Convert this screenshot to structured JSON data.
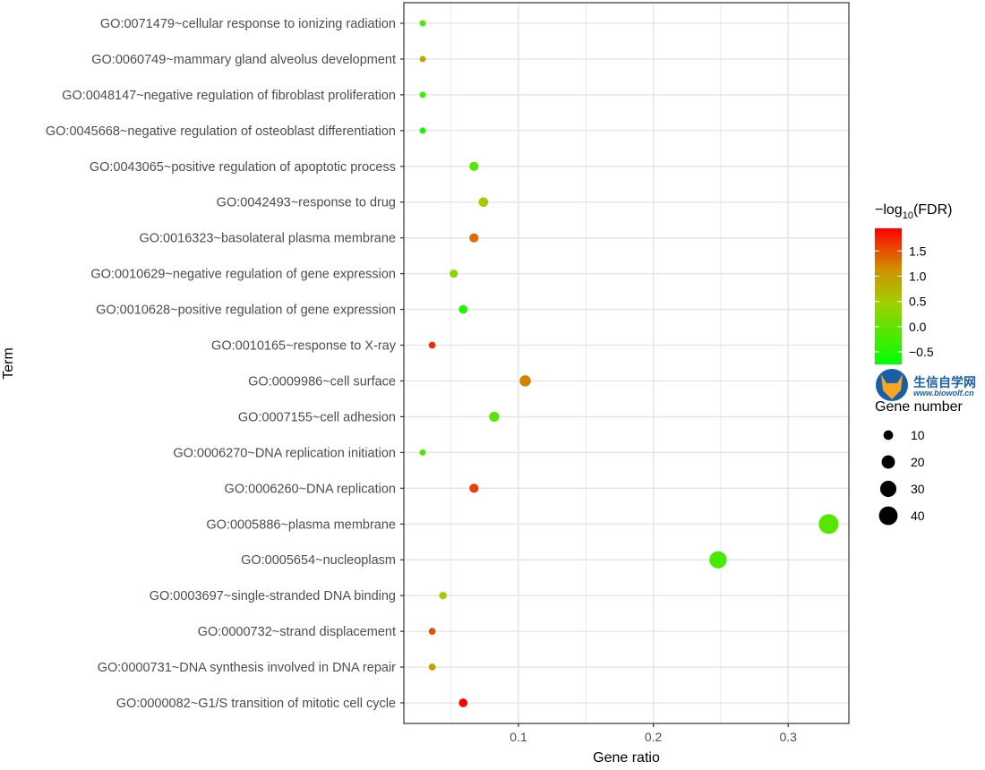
{
  "chart_data": {
    "type": "scatter",
    "xlabel": "Gene ratio",
    "ylabel": "Term",
    "xlim": [
      0.015,
      0.345
    ],
    "x_ticks": [
      0.1,
      0.2,
      0.3
    ],
    "grid": true,
    "terms": [
      {
        "term": "GO:0000082~G1/S transition of mitotic cell cycle",
        "gene_ratio": 0.059,
        "gene_number": 8,
        "neg_log10_fdr": 1.95
      },
      {
        "term": "GO:0000731~DNA synthesis involved in DNA repair",
        "gene_ratio": 0.036,
        "gene_number": 5,
        "neg_log10_fdr": 1.0
      },
      {
        "term": "GO:0000732~strand displacement",
        "gene_ratio": 0.036,
        "gene_number": 5,
        "neg_log10_fdr": 1.5
      },
      {
        "term": "GO:0003697~single-stranded DNA binding",
        "gene_ratio": 0.044,
        "gene_number": 6,
        "neg_log10_fdr": 0.5
      },
      {
        "term": "GO:0005654~nucleoplasm",
        "gene_ratio": 0.248,
        "gene_number": 34,
        "neg_log10_fdr": -0.2
      },
      {
        "term": "GO:0005886~plasma membrane",
        "gene_ratio": 0.33,
        "gene_number": 45,
        "neg_log10_fdr": -0.1
      },
      {
        "term": "GO:0006260~DNA replication",
        "gene_ratio": 0.067,
        "gene_number": 9,
        "neg_log10_fdr": 1.6
      },
      {
        "term": "GO:0006270~DNA replication initiation",
        "gene_ratio": 0.029,
        "gene_number": 4,
        "neg_log10_fdr": -0.2
      },
      {
        "term": "GO:0007155~cell adhesion",
        "gene_ratio": 0.082,
        "gene_number": 11,
        "neg_log10_fdr": -0.1
      },
      {
        "term": "GO:0009986~cell surface",
        "gene_ratio": 0.105,
        "gene_number": 14,
        "neg_log10_fdr": 1.2
      },
      {
        "term": "GO:0010165~response to X-ray",
        "gene_ratio": 0.036,
        "gene_number": 5,
        "neg_log10_fdr": 1.7
      },
      {
        "term": "GO:0010628~positive regulation of gene expression",
        "gene_ratio": 0.059,
        "gene_number": 8,
        "neg_log10_fdr": -0.5
      },
      {
        "term": "GO:0010629~negative regulation of gene expression",
        "gene_ratio": 0.052,
        "gene_number": 7,
        "neg_log10_fdr": 0.3
      },
      {
        "term": "GO:0016323~basolateral plasma membrane",
        "gene_ratio": 0.067,
        "gene_number": 9,
        "neg_log10_fdr": 1.35
      },
      {
        "term": "GO:0042493~response to drug",
        "gene_ratio": 0.074,
        "gene_number": 10,
        "neg_log10_fdr": 0.5
      },
      {
        "term": "GO:0043065~positive regulation of apoptotic process",
        "gene_ratio": 0.067,
        "gene_number": 9,
        "neg_log10_fdr": -0.1
      },
      {
        "term": "GO:0045668~negative regulation of osteoblast differentiation",
        "gene_ratio": 0.029,
        "gene_number": 4,
        "neg_log10_fdr": -0.6
      },
      {
        "term": "GO:0048147~negative regulation of fibroblast proliferation",
        "gene_ratio": 0.029,
        "gene_number": 4,
        "neg_log10_fdr": -0.3
      },
      {
        "term": "GO:0060749~mammary gland alveolus development",
        "gene_ratio": 0.029,
        "gene_number": 4,
        "neg_log10_fdr": 0.9
      },
      {
        "term": "GO:0071479~cellular response to ionizing radiation",
        "gene_ratio": 0.029,
        "gene_number": 4,
        "neg_log10_fdr": -0.2
      }
    ],
    "color_legend": {
      "title_prefix": "−log",
      "title_sub": "10",
      "title_suffix": "(FDR)",
      "min": -0.75,
      "max": 1.95,
      "ticks": [
        -0.5,
        0.0,
        0.5,
        1.0,
        1.5
      ],
      "tick_labels": [
        "−0.5",
        "0.0",
        "0.5",
        "1.0",
        "1.5"
      ],
      "low_color": "#00ff00",
      "high_color": "#ff0000"
    },
    "size_legend": {
      "title": "Gene number",
      "values": [
        10,
        20,
        30,
        40
      ],
      "labels": [
        "10",
        "20",
        "30",
        "40"
      ]
    }
  },
  "logo": {
    "name": "生信自学网",
    "url": "www.biowolf.cn"
  }
}
